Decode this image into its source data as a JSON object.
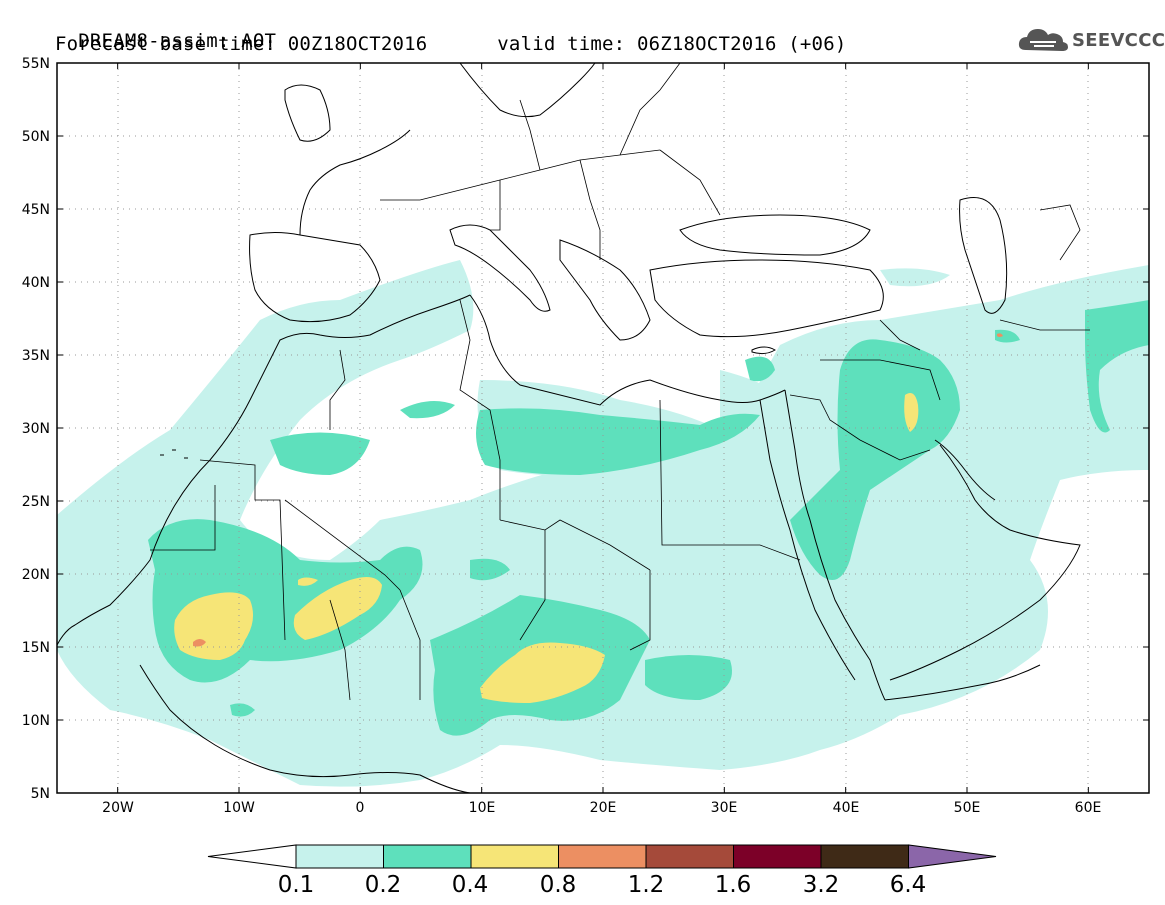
{
  "header": {
    "title_line1": "DREAM8-assim: AOT",
    "base_time_label": "Forecast base time:",
    "base_time": "00Z18OCT2016",
    "valid_time_label": "valid time:",
    "valid_time": "06Z18OCT2016 (+06)"
  },
  "logo": {
    "text": "SEEVCCC",
    "icon": "cloud-icon"
  },
  "map": {
    "lat_ticks": [
      "55N",
      "50N",
      "45N",
      "40N",
      "35N",
      "30N",
      "25N",
      "20N",
      "15N",
      "10N",
      "5N"
    ],
    "lon_ticks": [
      "20W",
      "10W",
      "0",
      "10E",
      "20E",
      "30E",
      "40E",
      "50E",
      "60E"
    ],
    "lat_range": [
      5,
      55
    ],
    "lon_range": [
      -25,
      65
    ]
  },
  "colorbar": {
    "labels": [
      "0.1",
      "0.2",
      "0.4",
      "0.8",
      "1.2",
      "1.6",
      "3.2",
      "6.4"
    ],
    "colors": [
      "#ffffff",
      "#c6f2ec",
      "#5ee0bc",
      "#f6e577",
      "#ec8f62",
      "#a54a3a",
      "#7c0028",
      "#3f2a17",
      "#8b66a9"
    ],
    "thresholds": [
      0.1,
      0.2,
      0.4,
      0.8,
      1.2,
      1.6,
      3.2,
      6.4
    ]
  }
}
